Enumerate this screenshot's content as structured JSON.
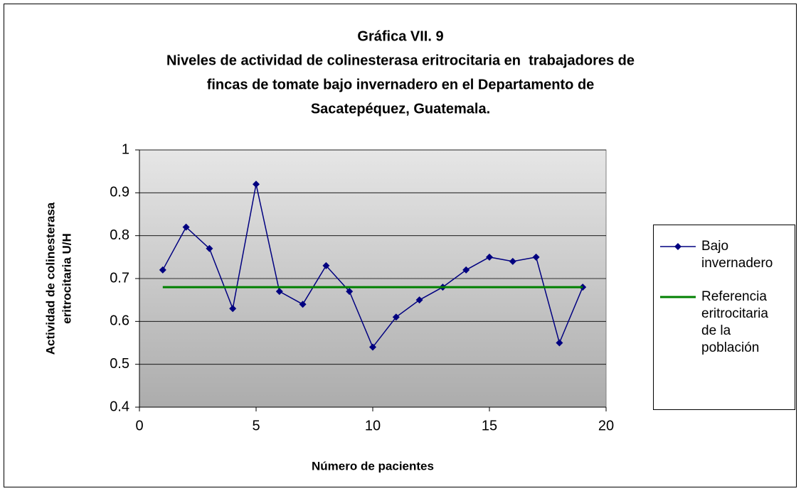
{
  "chart_data": {
    "type": "line",
    "title": "Gráfica VII. 9",
    "subtitle": [
      "Niveles de actividad de colinesterasa eritrocitaria en  trabajadores de",
      "fincas de tomate bajo invernadero en el Departamento de",
      "Sacatepéquez, Guatemala."
    ],
    "xlabel": "Número de pacientes",
    "ylabel": "Actividad de colinesterasa eritrocitaria U/H",
    "xlim": [
      0,
      20
    ],
    "xticks": [
      0,
      5,
      10,
      15,
      20
    ],
    "ylim": [
      0.4,
      1
    ],
    "yticks": [
      0.4,
      0.5,
      0.6,
      0.7,
      0.8,
      0.9,
      1
    ],
    "grid": true,
    "legend": "right",
    "series": [
      {
        "name": "Bajo invernadero",
        "color": "#000080",
        "marker": "diamond",
        "x": [
          1,
          2,
          3,
          4,
          5,
          6,
          7,
          8,
          9,
          10,
          11,
          12,
          13,
          14,
          15,
          16,
          17,
          18,
          19
        ],
        "values": [
          0.72,
          0.82,
          0.77,
          0.63,
          0.92,
          0.67,
          0.64,
          0.73,
          0.67,
          0.54,
          0.61,
          0.65,
          0.68,
          0.72,
          0.75,
          0.74,
          0.75,
          0.55,
          0.68
        ]
      },
      {
        "name": "Referencia eritrocitaria de la población",
        "color": "#008000",
        "x": [
          1,
          19
        ],
        "values": [
          0.68,
          0.68
        ]
      }
    ]
  }
}
